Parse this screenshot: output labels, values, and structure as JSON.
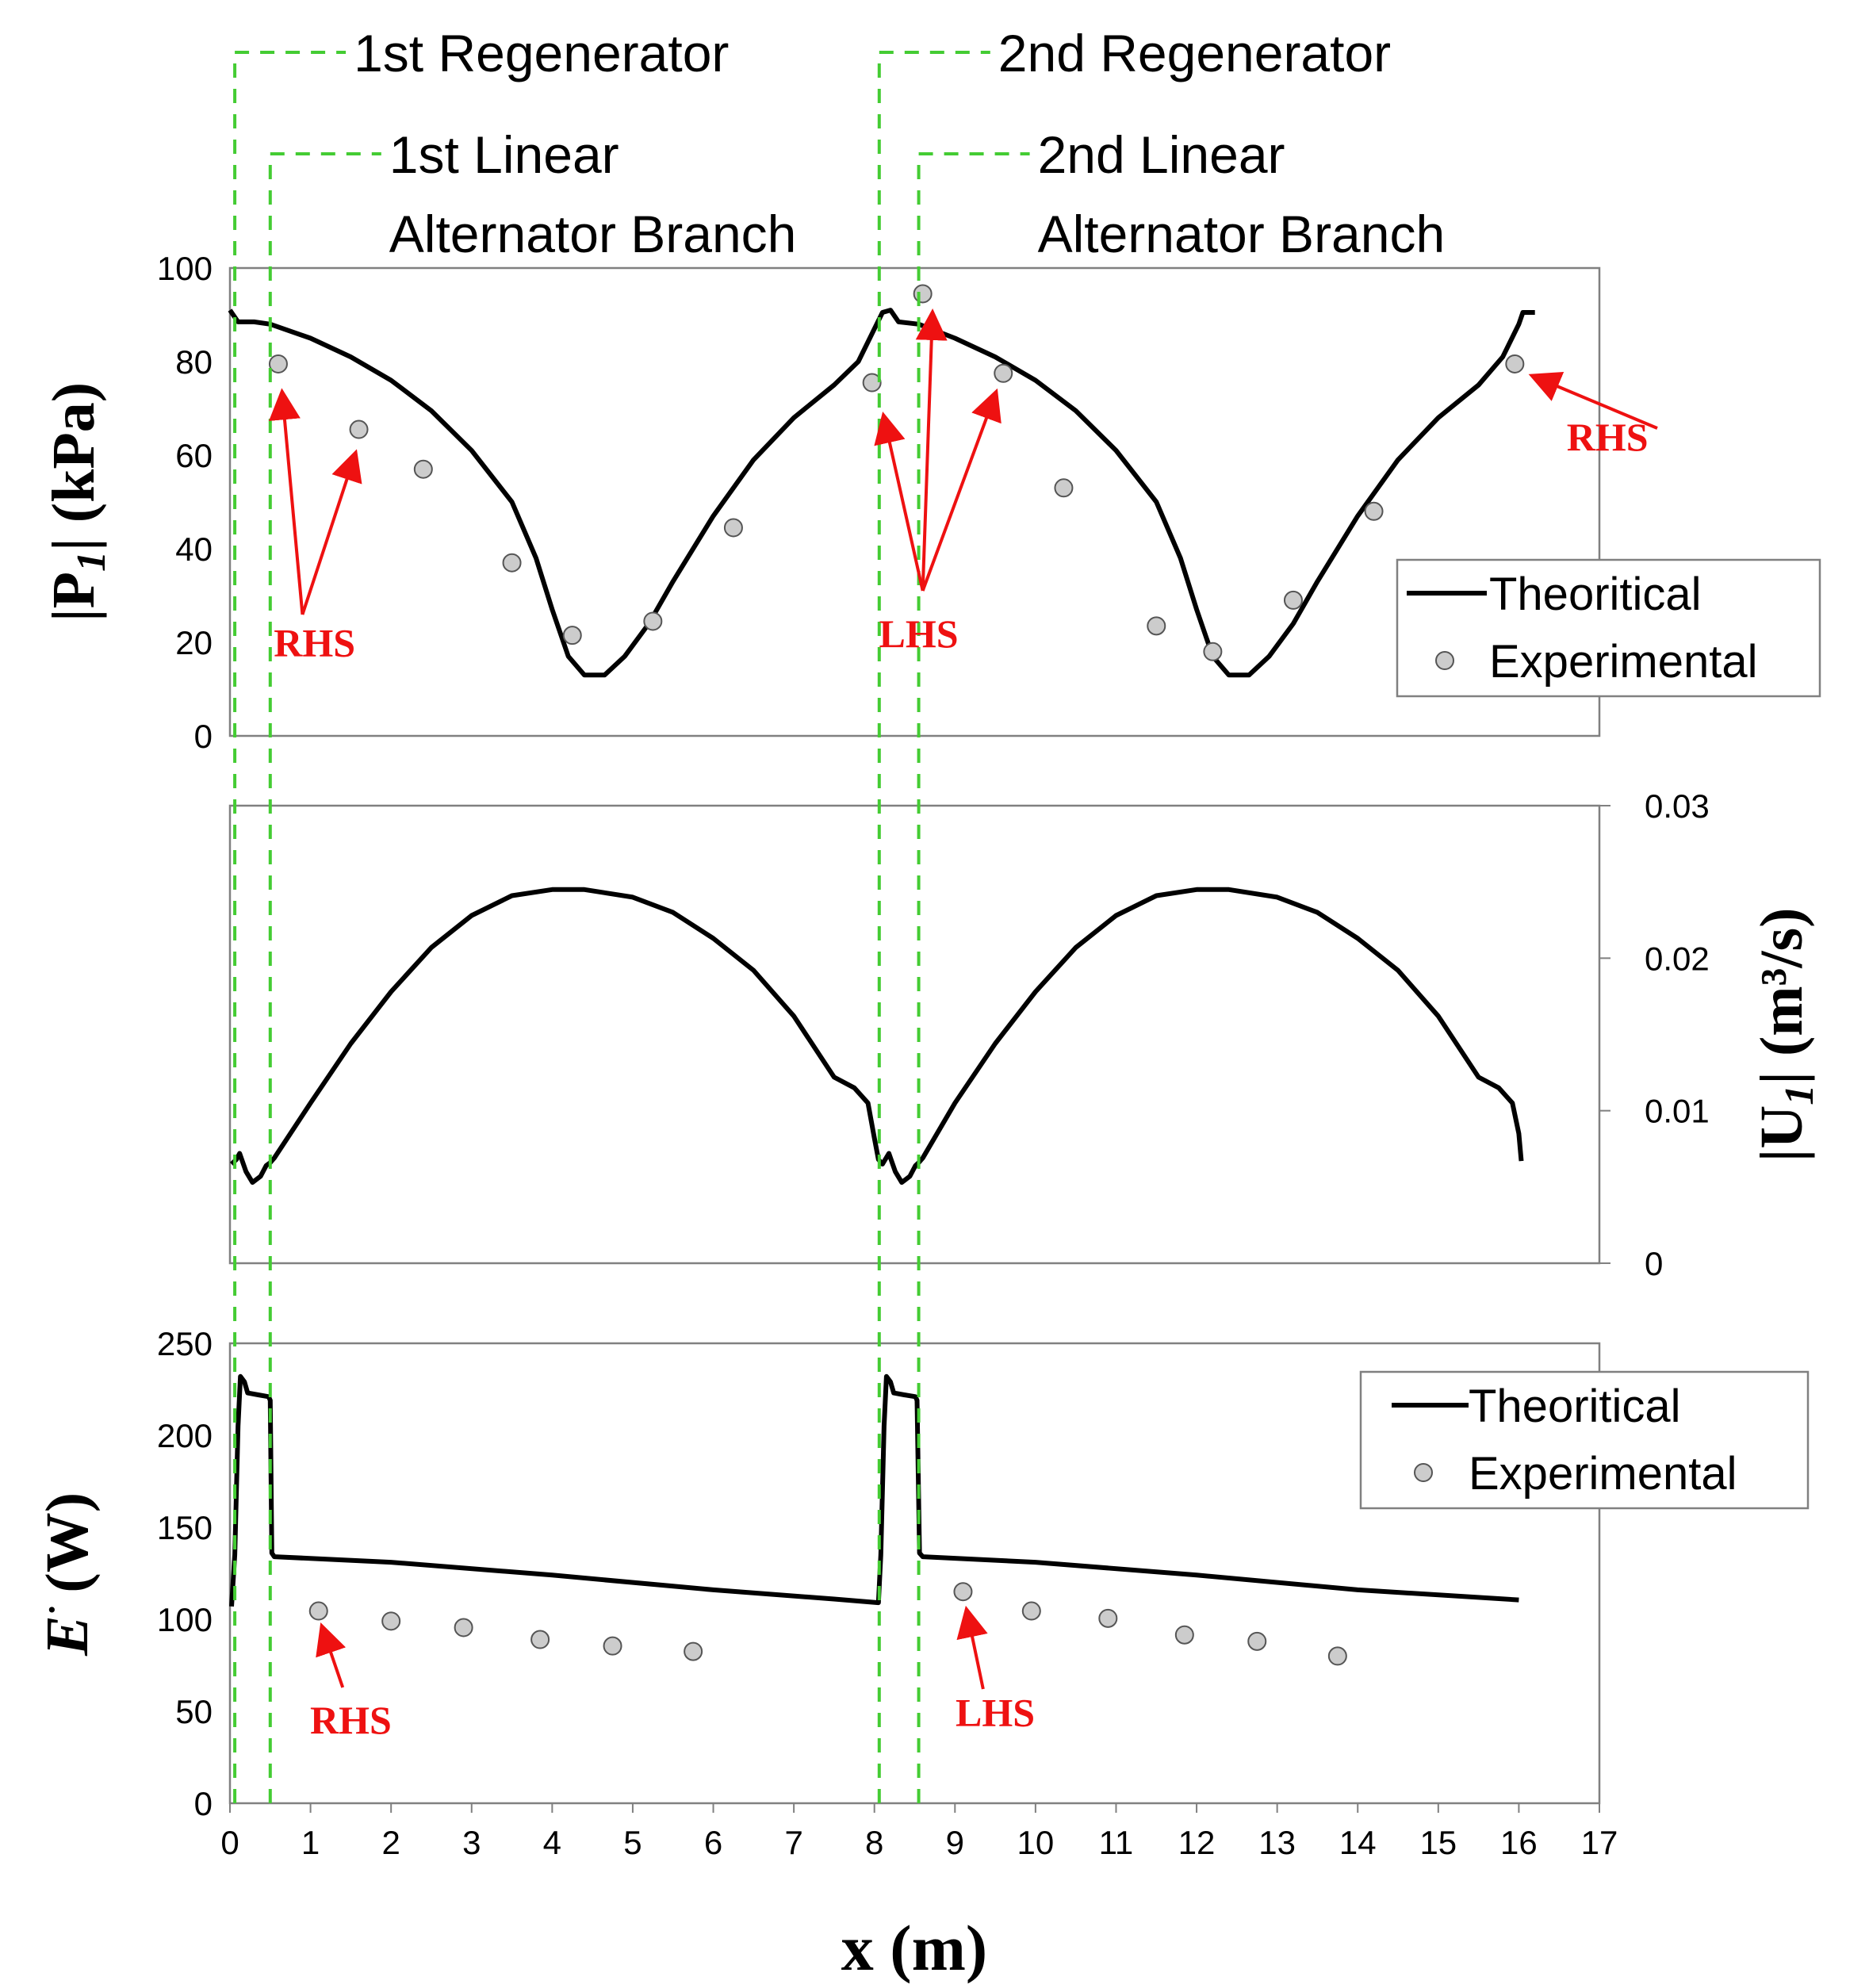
{
  "chart_data": {
    "type": "line",
    "x_axis": {
      "label": "x (m)",
      "range": [
        0,
        17
      ],
      "ticks": [
        "0",
        "1",
        "2",
        "3",
        "4",
        "5",
        "6",
        "7",
        "8",
        "9",
        "10",
        "11",
        "12",
        "13",
        "14",
        "15",
        "16",
        "17"
      ]
    },
    "dividers": [
      {
        "x": 0.06,
        "label": "1st Regenerator",
        "line2": ""
      },
      {
        "x": 0.5,
        "label": "1st Linear",
        "line2": "Alternator Branch"
      },
      {
        "x": 8.06,
        "label": "2nd Regenerator",
        "line2": ""
      },
      {
        "x": 8.55,
        "label": "2nd Linear",
        "line2": "Alternator Branch"
      }
    ],
    "panels": [
      {
        "id": "pressure",
        "y_label_main": "|P",
        "y_label_sub": "1",
        "y_label_rest": "| (kPa)",
        "y_side": "left",
        "y_range": [
          0,
          100
        ],
        "y_ticks": [
          "0",
          "20",
          "40",
          "60",
          "80",
          "100"
        ],
        "legend": {
          "line": "Theoritical",
          "points": "Experimental"
        },
        "theoretical": [
          [
            0,
            91
          ],
          [
            0.1,
            88.5
          ],
          [
            0.3,
            88.5
          ],
          [
            0.5,
            88
          ],
          [
            1,
            85
          ],
          [
            1.5,
            81
          ],
          [
            2,
            76
          ],
          [
            2.5,
            69.5
          ],
          [
            3,
            61
          ],
          [
            3.5,
            50
          ],
          [
            3.8,
            38
          ],
          [
            4,
            27
          ],
          [
            4.2,
            17
          ],
          [
            4.4,
            13
          ],
          [
            4.65,
            13
          ],
          [
            4.9,
            17
          ],
          [
            5.2,
            24
          ],
          [
            5.5,
            33
          ],
          [
            6,
            47
          ],
          [
            6.5,
            59
          ],
          [
            7,
            68
          ],
          [
            7.5,
            75
          ],
          [
            7.8,
            80
          ],
          [
            8.0,
            87
          ],
          [
            8.1,
            90.5
          ],
          [
            8.2,
            91
          ],
          [
            8.3,
            88.5
          ],
          [
            8.55,
            88
          ],
          [
            9,
            85
          ],
          [
            9.5,
            81
          ],
          [
            10,
            76
          ],
          [
            10.5,
            69.5
          ],
          [
            11,
            61
          ],
          [
            11.5,
            50
          ],
          [
            11.8,
            38
          ],
          [
            12,
            27
          ],
          [
            12.2,
            17
          ],
          [
            12.4,
            13
          ],
          [
            12.65,
            13
          ],
          [
            12.9,
            17
          ],
          [
            13.2,
            24
          ],
          [
            13.5,
            33
          ],
          [
            14,
            47
          ],
          [
            14.5,
            59
          ],
          [
            15,
            68
          ],
          [
            15.5,
            75
          ],
          [
            15.8,
            81
          ],
          [
            16.0,
            88
          ],
          [
            16.05,
            90.5
          ],
          [
            16.2,
            90.5
          ]
        ],
        "experimental": [
          [
            0.6,
            79.5
          ],
          [
            1.6,
            65.5
          ],
          [
            2.4,
            57
          ],
          [
            3.5,
            37
          ],
          [
            4.25,
            21.5
          ],
          [
            5.25,
            24.5
          ],
          [
            6.25,
            44.5
          ],
          [
            7.97,
            75.5
          ],
          [
            8.6,
            94.5
          ],
          [
            9.6,
            77.5
          ],
          [
            10.35,
            53
          ],
          [
            11.5,
            23.5
          ],
          [
            12.2,
            18
          ],
          [
            13.2,
            29
          ],
          [
            14.2,
            48
          ],
          [
            15.95,
            79.5
          ]
        ],
        "annotations": [
          {
            "text": "RHS",
            "x": 1.05,
            "y": 17
          },
          {
            "text": "LHS",
            "x": 8.55,
            "y": 19
          },
          {
            "text": "RHS",
            "x": 17.1,
            "y": 61
          }
        ]
      },
      {
        "id": "flow",
        "y_label_main": "|U",
        "y_label_sub": "1",
        "y_label_rest": "| (m³/s)",
        "y_side": "right",
        "y_range": [
          0,
          0.03
        ],
        "y_ticks": [
          "0",
          "0.01",
          "0.02",
          "0.03"
        ],
        "theoretical": [
          [
            0.02,
            0.0065
          ],
          [
            0.08,
            0.0068
          ],
          [
            0.12,
            0.0072
          ],
          [
            0.2,
            0.006
          ],
          [
            0.28,
            0.0053
          ],
          [
            0.38,
            0.0057
          ],
          [
            0.45,
            0.0064
          ],
          [
            0.5,
            0.0066
          ],
          [
            0.55,
            0.0069
          ],
          [
            1,
            0.0105
          ],
          [
            1.5,
            0.0144
          ],
          [
            2,
            0.0178
          ],
          [
            2.5,
            0.0207
          ],
          [
            3,
            0.0228
          ],
          [
            3.5,
            0.0241
          ],
          [
            4,
            0.0245
          ],
          [
            4.4,
            0.0245
          ],
          [
            5,
            0.024
          ],
          [
            5.5,
            0.023
          ],
          [
            6,
            0.0213
          ],
          [
            6.5,
            0.0192
          ],
          [
            7,
            0.0162
          ],
          [
            7.5,
            0.0122
          ],
          [
            7.75,
            0.0115
          ],
          [
            7.92,
            0.0105
          ],
          [
            8.0,
            0.0082
          ],
          [
            8.05,
            0.0068
          ],
          [
            8.1,
            0.0065
          ],
          [
            8.18,
            0.0072
          ],
          [
            8.26,
            0.006
          ],
          [
            8.34,
            0.0053
          ],
          [
            8.44,
            0.0057
          ],
          [
            8.51,
            0.0064
          ],
          [
            8.55,
            0.0066
          ],
          [
            8.6,
            0.0069
          ],
          [
            9,
            0.0105
          ],
          [
            9.5,
            0.0144
          ],
          [
            10,
            0.0178
          ],
          [
            10.5,
            0.0207
          ],
          [
            11,
            0.0228
          ],
          [
            11.5,
            0.0241
          ],
          [
            12,
            0.0245
          ],
          [
            12.4,
            0.0245
          ],
          [
            13,
            0.024
          ],
          [
            13.5,
            0.023
          ],
          [
            14,
            0.0213
          ],
          [
            14.5,
            0.0192
          ],
          [
            15,
            0.0162
          ],
          [
            15.5,
            0.0122
          ],
          [
            15.75,
            0.0115
          ],
          [
            15.92,
            0.0105
          ],
          [
            16.0,
            0.0085
          ],
          [
            16.03,
            0.0067
          ]
        ],
        "experimental": [],
        "annotations": []
      },
      {
        "id": "power",
        "y_label_main": "E",
        "y_label_sub": "",
        "y_label_rest": "(W)",
        "y_side": "left",
        "y_range": [
          0,
          250
        ],
        "y_ticks": [
          "0",
          "50",
          "100",
          "150",
          "200",
          "250"
        ],
        "legend": {
          "line": "Theoritical",
          "points": "Experimental"
        },
        "theoretical": [
          [
            0.02,
            107
          ],
          [
            0.06,
            135
          ],
          [
            0.1,
            205
          ],
          [
            0.13,
            232
          ],
          [
            0.18,
            229
          ],
          [
            0.22,
            223
          ],
          [
            0.35,
            222
          ],
          [
            0.48,
            221
          ],
          [
            0.5,
            219
          ],
          [
            0.52,
            136
          ],
          [
            0.55,
            134
          ],
          [
            2,
            131
          ],
          [
            4,
            124
          ],
          [
            6,
            116
          ],
          [
            7.5,
            111
          ],
          [
            8.05,
            109
          ],
          [
            8.08,
            135
          ],
          [
            8.12,
            205
          ],
          [
            8.15,
            232
          ],
          [
            8.2,
            229
          ],
          [
            8.24,
            223
          ],
          [
            8.37,
            222
          ],
          [
            8.51,
            221
          ],
          [
            8.53,
            219
          ],
          [
            8.56,
            136
          ],
          [
            8.6,
            134
          ],
          [
            10,
            131
          ],
          [
            12,
            124
          ],
          [
            14,
            116
          ],
          [
            16,
            110.5
          ]
        ],
        "experimental": [
          [
            1.1,
            104.5
          ],
          [
            2.0,
            99
          ],
          [
            2.9,
            95.5
          ],
          [
            3.85,
            89
          ],
          [
            4.75,
            85.5
          ],
          [
            5.75,
            82.5
          ],
          [
            9.1,
            115
          ],
          [
            9.95,
            104.5
          ],
          [
            10.9,
            100.5
          ],
          [
            11.85,
            91.5
          ],
          [
            12.75,
            88
          ],
          [
            13.75,
            80
          ]
        ],
        "annotations": [
          {
            "text": "RHS",
            "x": 1.5,
            "y": 38
          },
          {
            "text": "LHS",
            "x": 9.5,
            "y": 42
          }
        ]
      }
    ]
  }
}
